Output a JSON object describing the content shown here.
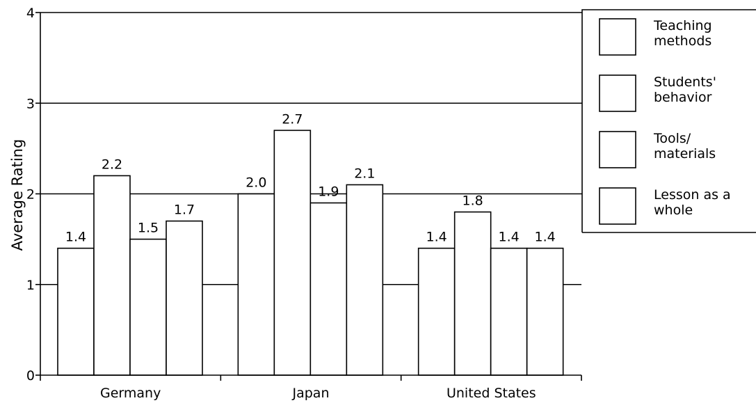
{
  "chart_data": {
    "type": "bar",
    "ylabel": "Average Rating",
    "xlabel": "",
    "ylim": [
      0,
      4
    ],
    "yticks": [
      0,
      1,
      2,
      3,
      4
    ],
    "categories": [
      "Germany",
      "Japan",
      "United States"
    ],
    "series": [
      {
        "name": "Teaching methods",
        "values": [
          1.4,
          2.0,
          1.4
        ]
      },
      {
        "name": "Students' behavior",
        "values": [
          2.2,
          2.7,
          1.8
        ]
      },
      {
        "name": "Tools/ materials",
        "values": [
          1.5,
          1.9,
          1.4
        ]
      },
      {
        "name": "Lesson as a whole",
        "values": [
          1.7,
          2.1,
          1.4
        ]
      }
    ],
    "data_labels": [
      [
        "1.4",
        "2.2",
        "1.5",
        "1.7"
      ],
      [
        "2.0",
        "2.7",
        "1.9",
        "2.1"
      ],
      [
        "1.4",
        "1.8",
        "1.4",
        "1.4"
      ]
    ],
    "legend": {
      "position": "top-right",
      "entries": [
        [
          "Teaching",
          "methods"
        ],
        [
          "Students'",
          "behavior"
        ],
        [
          "Tools/",
          "materials"
        ],
        [
          "Lesson as a",
          "whole"
        ]
      ]
    },
    "grid": "horizontal",
    "bar_fill": "#ffffff",
    "stroke_color": "#000000"
  }
}
